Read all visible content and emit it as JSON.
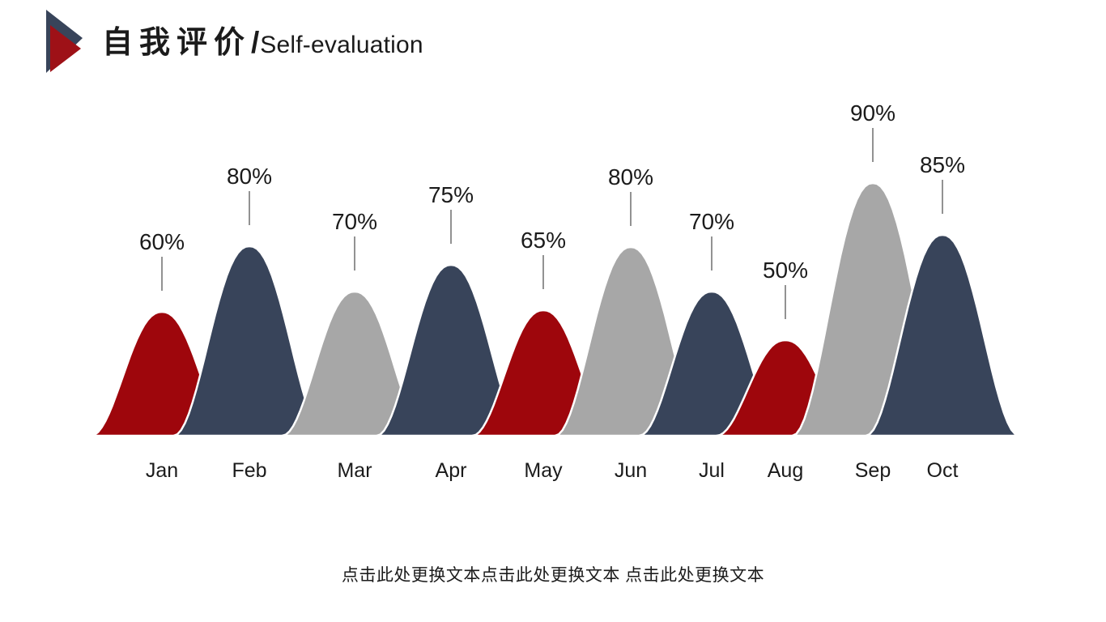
{
  "header": {
    "title_zh": "自我评价",
    "title_separator": "/",
    "title_en": "Self-evaluation"
  },
  "footer": {
    "placeholder_text": "点击此处更换文本点击此处更换文本 点击此处更换文本"
  },
  "palette": {
    "red": "#9E060C",
    "navy": "#38445A",
    "gray": "#A7A7A7",
    "text": "#1B1B1B",
    "leader_line": "#4A4A4A",
    "dome_outline": "#FFFFFF",
    "logo_back_navy": "#38445A",
    "logo_front_red": "#9E1117",
    "background": "#FFFFFF"
  },
  "chart_data": {
    "type": "area",
    "title": "",
    "xlabel": "",
    "ylabel": "",
    "ylim": [
      0,
      100
    ],
    "grid": false,
    "legend": "none",
    "categories": [
      "Jan",
      "Feb",
      "Mar",
      "Apr",
      "May",
      "Jun",
      "Jul",
      "Aug",
      "Sep",
      "Oct"
    ],
    "values": [
      60,
      80,
      70,
      75,
      65,
      80,
      70,
      50,
      90,
      85
    ],
    "data_labels": [
      "60%",
      "80%",
      "70%",
      "75%",
      "65%",
      "80%",
      "70%",
      "50%",
      "90%",
      "85%"
    ],
    "point_colors": [
      "red",
      "navy",
      "gray",
      "navy",
      "red",
      "gray",
      "navy",
      "red",
      "gray",
      "navy"
    ],
    "layout": {
      "baseline_y": 538,
      "month_label_baseline_y": 589,
      "x_positions": [
        200,
        308,
        438,
        557,
        671,
        779,
        879,
        970,
        1078,
        1164
      ],
      "peak_top_y": [
        385,
        304,
        360,
        327,
        383,
        305,
        360,
        420,
        226,
        290
      ]
    }
  }
}
